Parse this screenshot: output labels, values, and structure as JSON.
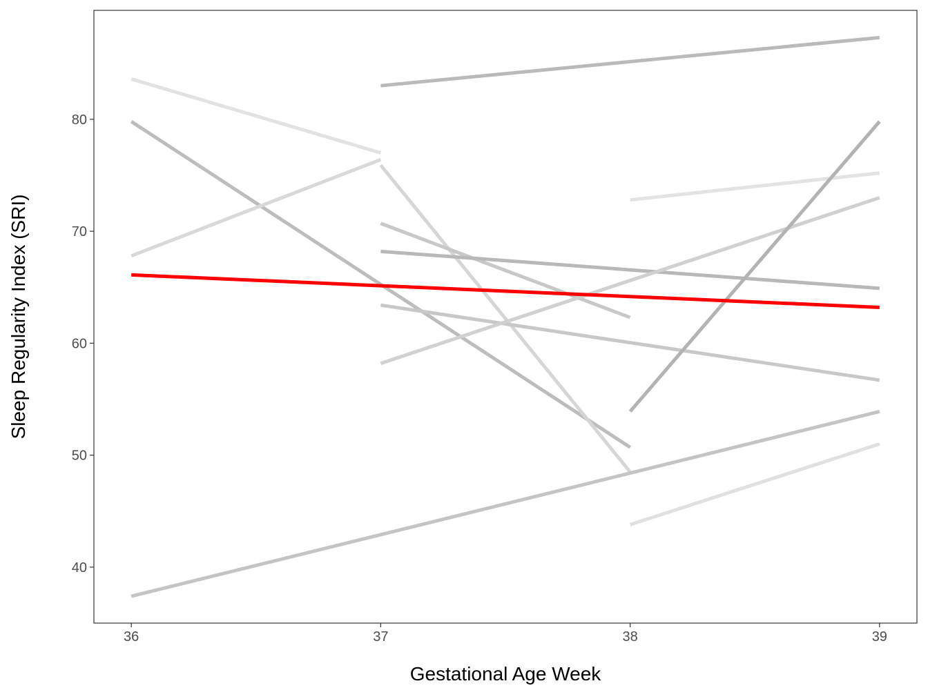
{
  "chart_data": {
    "type": "line",
    "x_label": "Gestational Age Week",
    "y_label": "Sleep Regularity Index (SRI)",
    "xlim": [
      35.85,
      39.15
    ],
    "xticks": [
      36,
      37,
      38,
      39
    ],
    "ylim": [
      35.0,
      89.73
    ],
    "yticks": [
      40,
      50,
      60,
      70,
      80
    ],
    "grid": false,
    "series": [
      {
        "color": "#bababa",
        "x": [
          37,
          39
        ],
        "values": [
          83.0,
          87.3
        ]
      },
      {
        "color": "#e2e2e2",
        "x": [
          36,
          37
        ],
        "values": [
          83.6,
          77.0
        ]
      },
      {
        "color": "#bdbdbd",
        "x": [
          36,
          38
        ],
        "values": [
          79.8,
          50.7
        ]
      },
      {
        "color": "#d9d9d9",
        "x": [
          36,
          37
        ],
        "values": [
          67.8,
          76.4
        ]
      },
      {
        "color": "#d6d6d6",
        "x": [
          37,
          38
        ],
        "values": [
          75.9,
          48.5
        ]
      },
      {
        "color": "#c8c8c8",
        "x": [
          37,
          38
        ],
        "values": [
          70.7,
          62.3
        ]
      },
      {
        "color": "#b8b8b8",
        "x": [
          37,
          39
        ],
        "values": [
          68.2,
          64.9
        ]
      },
      {
        "color": "#c8c8c8",
        "x": [
          37,
          39
        ],
        "values": [
          63.4,
          56.7
        ]
      },
      {
        "color": "#d0d0d0",
        "x": [
          37,
          39
        ],
        "values": [
          58.2,
          73.0
        ]
      },
      {
        "color": "#e3e3e3",
        "x": [
          38,
          39
        ],
        "values": [
          72.8,
          75.2
        ]
      },
      {
        "color": "#b3b3b3",
        "x": [
          38,
          39
        ],
        "values": [
          53.9,
          79.8
        ]
      },
      {
        "color": "#c4c4c4",
        "x": [
          36,
          39
        ],
        "values": [
          37.4,
          53.9
        ]
      },
      {
        "color": "#e0e0e0",
        "x": [
          38,
          39
        ],
        "values": [
          43.8,
          51.0
        ]
      },
      {
        "color": "#ff0000",
        "x": [
          36,
          39
        ],
        "values": [
          66.1,
          63.2
        ]
      }
    ]
  }
}
